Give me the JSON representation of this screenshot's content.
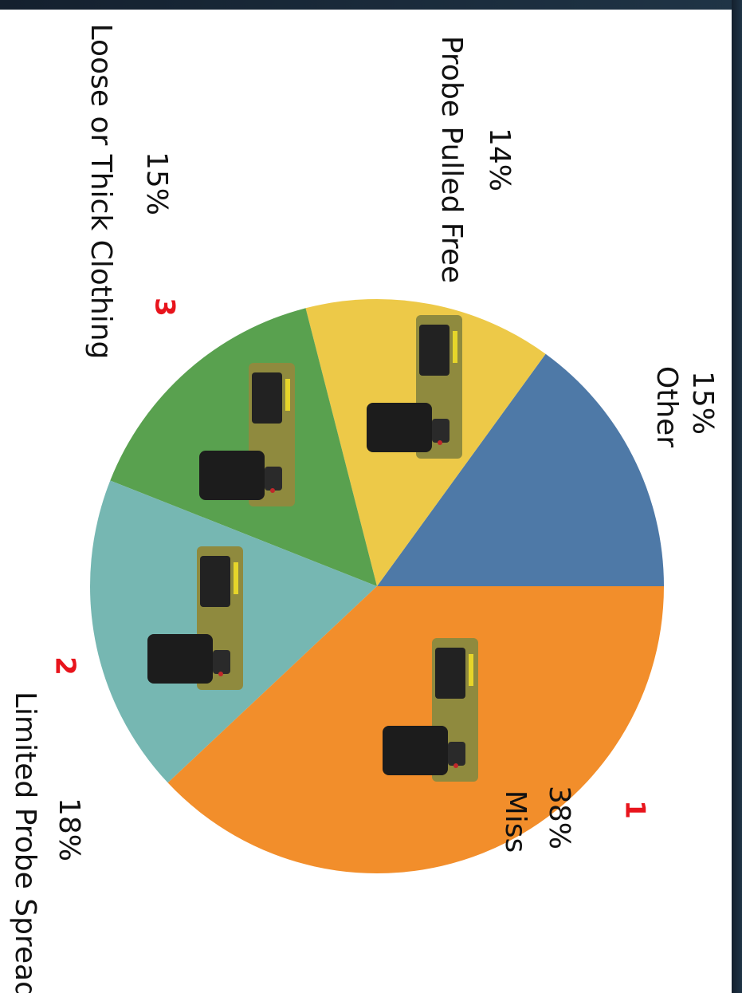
{
  "chart_data": {
    "type": "pie",
    "categories": [
      "Other",
      "Probe Pulled Free",
      "Loose or Thick Clothing",
      "Limited Probe Spread",
      "Miss"
    ],
    "values": [
      15,
      14,
      15,
      18,
      38
    ],
    "value_labels": [
      "15%",
      "14%",
      "15%",
      "18%",
      "38%"
    ],
    "colors": [
      "#4e79a7",
      "#edc948",
      "#59a14f",
      "#76b7b2",
      "#f28e2b"
    ],
    "annotations": [
      "1",
      "2",
      "3"
    ]
  }
}
